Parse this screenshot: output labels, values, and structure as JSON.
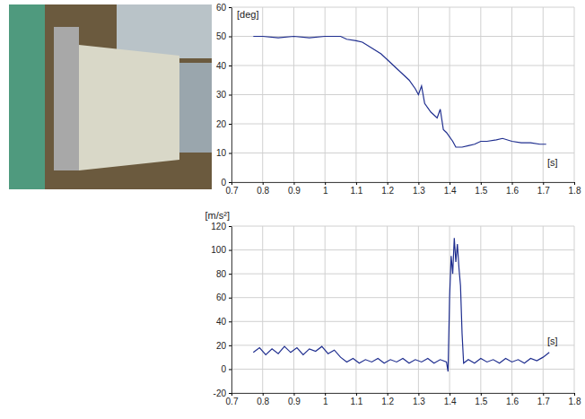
{
  "chart_data": [
    {
      "type": "line",
      "y_label": "[deg]",
      "x_label": "[s]",
      "grid": true,
      "color": "#1f2e8f",
      "xlim": [
        0.7,
        1.8
      ],
      "xticks": [
        0.7,
        0.8,
        0.9,
        1,
        1.1,
        1.2,
        1.3,
        1.4,
        1.5,
        1.6,
        1.7,
        1.8
      ],
      "ylim": [
        0,
        60
      ],
      "yticks": [
        0,
        10,
        20,
        30,
        40,
        50,
        60
      ],
      "x": [
        0.77,
        0.8,
        0.85,
        0.9,
        0.95,
        1.0,
        1.03,
        1.05,
        1.07,
        1.1,
        1.12,
        1.15,
        1.18,
        1.2,
        1.22,
        1.25,
        1.27,
        1.29,
        1.3,
        1.31,
        1.32,
        1.34,
        1.36,
        1.37,
        1.38,
        1.39,
        1.41,
        1.42,
        1.44,
        1.46,
        1.48,
        1.5,
        1.52,
        1.55,
        1.57,
        1.6,
        1.63,
        1.66,
        1.69,
        1.71
      ],
      "values": [
        50,
        50,
        49.5,
        50,
        49.5,
        50,
        50,
        50,
        49,
        48.5,
        48,
        46,
        44,
        42,
        40,
        37,
        35,
        32,
        30,
        33,
        27,
        24,
        22,
        25,
        18,
        17,
        14,
        12,
        12,
        12.5,
        13,
        14,
        14,
        14.5,
        15,
        14,
        13.5,
        13.5,
        13,
        13
      ]
    },
    {
      "type": "line",
      "y_label": "[m/s²]",
      "x_label": "[s]",
      "grid": true,
      "color": "#1f2e8f",
      "xlim": [
        0.7,
        1.8
      ],
      "xticks": [
        0.7,
        0.8,
        0.9,
        1,
        1.1,
        1.2,
        1.3,
        1.4,
        1.5,
        1.6,
        1.7,
        1.8
      ],
      "ylim": [
        -20,
        120
      ],
      "yticks": [
        -20,
        0,
        20,
        40,
        60,
        80,
        100,
        120
      ],
      "x": [
        0.77,
        0.79,
        0.81,
        0.83,
        0.85,
        0.87,
        0.89,
        0.91,
        0.93,
        0.95,
        0.97,
        0.99,
        1.01,
        1.03,
        1.05,
        1.07,
        1.09,
        1.11,
        1.13,
        1.15,
        1.17,
        1.19,
        1.21,
        1.23,
        1.25,
        1.27,
        1.29,
        1.31,
        1.33,
        1.35,
        1.37,
        1.39,
        1.395,
        1.4,
        1.405,
        1.41,
        1.415,
        1.42,
        1.425,
        1.43,
        1.435,
        1.44,
        1.445,
        1.46,
        1.48,
        1.5,
        1.52,
        1.54,
        1.56,
        1.58,
        1.6,
        1.62,
        1.64,
        1.66,
        1.68,
        1.7,
        1.72
      ],
      "values": [
        14,
        18,
        12,
        17,
        13,
        19,
        14,
        18,
        12,
        17,
        15,
        19,
        13,
        16,
        10,
        6,
        9,
        5,
        8,
        6,
        9,
        5,
        8,
        6,
        9,
        5,
        8,
        6,
        9,
        5,
        8,
        6,
        -2,
        60,
        95,
        80,
        110,
        90,
        105,
        85,
        70,
        30,
        5,
        8,
        5,
        9,
        6,
        8,
        5,
        9,
        6,
        8,
        5,
        9,
        7,
        10,
        14
      ]
    }
  ]
}
